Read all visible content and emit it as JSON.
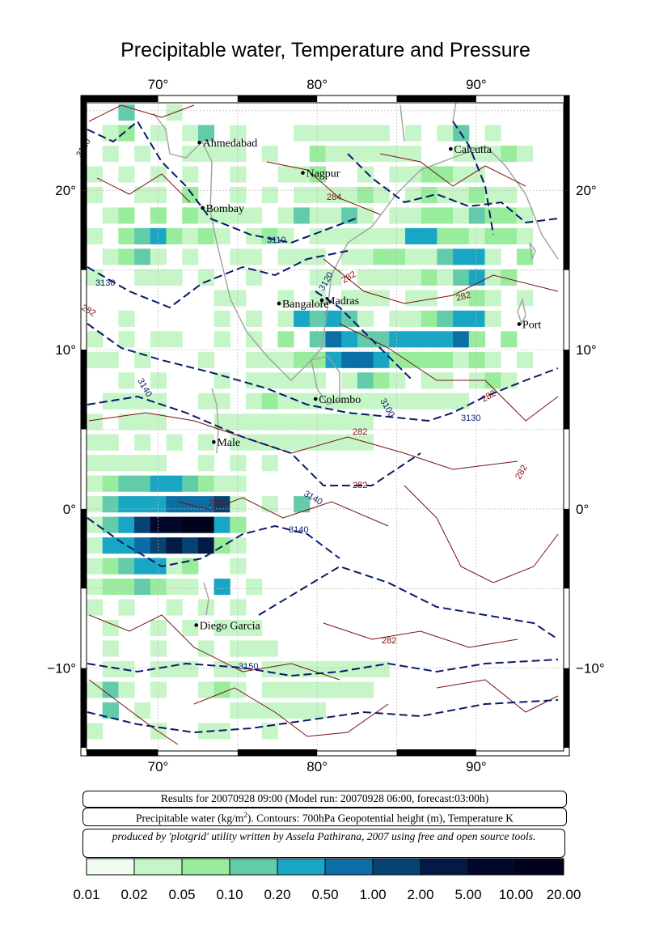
{
  "title": "Precipitable water, Temperature and Pressure",
  "axes": {
    "lon_ticks": [
      "70°",
      "80°",
      "90°"
    ],
    "lat_ticks": [
      "20°",
      "10°",
      "0°",
      "−10°"
    ]
  },
  "cities": [
    {
      "name": "Ahmedabad",
      "lon": 72.6,
      "lat": 23.0
    },
    {
      "name": "Calcutta",
      "lon": 88.4,
      "lat": 22.6
    },
    {
      "name": "Nagpur",
      "lon": 79.1,
      "lat": 21.1
    },
    {
      "name": "Bombay",
      "lon": 72.8,
      "lat": 18.9
    },
    {
      "name": "Madras",
      "lon": 80.3,
      "lat": 13.1
    },
    {
      "name": "Bangalore",
      "lon": 77.6,
      "lat": 12.9
    },
    {
      "name": "Port",
      "lon": 92.7,
      "lat": 11.6
    },
    {
      "name": "Colombo",
      "lon": 79.9,
      "lat": 6.9
    },
    {
      "name": "Male",
      "lon": 73.5,
      "lat": 4.2
    },
    {
      "name": "Diego Garcia",
      "lon": 72.4,
      "lat": -7.3
    }
  ],
  "contour_labels": {
    "height": [
      "3120",
      "3110",
      "3130",
      "3120",
      "3140",
      "3100",
      "3130",
      "3140",
      "3140",
      "3150"
    ],
    "temperature": [
      "284",
      "282",
      "282",
      "282",
      "282",
      "282",
      "282",
      "282",
      "282",
      "282"
    ]
  },
  "info": {
    "line1": "Results for 20070928 09:00 (Model run: 20070928 06:00, forecast:03:00h)",
    "line2_prefix": "Precipitable water (kg/m",
    "line2_sup": "2",
    "line2_suffix": ").  Contours: 700hPa Geopotential height (m), Temperature K",
    "line3": "produced by 'plotgrid' utility written by Assela Pathirana, 2007 using free and open source tools."
  },
  "legend": {
    "labels": [
      "0.01",
      "0.02",
      "0.05",
      "0.10",
      "0.20",
      "0.50",
      "1.00",
      "2.00",
      "5.00",
      "10.00",
      "20.00"
    ],
    "colors": [
      "#f0fcf0",
      "#c6f6c8",
      "#98ec9c",
      "#62cbaa",
      "#19a6c4",
      "#0b6ea4",
      "#064272",
      "#031a46",
      "#02082c",
      "#01031c"
    ]
  }
}
